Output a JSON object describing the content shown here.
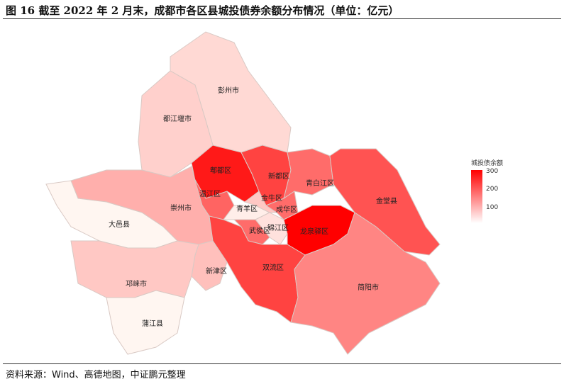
{
  "title": "图 16    截至 2022 年 2 月末，成都市各区县城投债券余额分布情况（单位：亿元）",
  "source": "资料来源：Wind、高德地图，中证鹏元整理",
  "legend": {
    "title": "城投债余额",
    "ticks": [
      "300",
      "200",
      "100"
    ],
    "range": [
      0,
      300
    ],
    "low_color": "#ffffff",
    "high_color": "#ff0000"
  },
  "regions": [
    {
      "name": "彭州市",
      "value": 40
    },
    {
      "name": "都江堰市",
      "value": 50
    },
    {
      "name": "郫都区",
      "value": 270
    },
    {
      "name": "新都区",
      "value": 220
    },
    {
      "name": "青白江区",
      "value": 170
    },
    {
      "name": "金堂县",
      "value": 200
    },
    {
      "name": "温江区",
      "value": 180
    },
    {
      "name": "崇州市",
      "value": 90
    },
    {
      "name": "大邑县",
      "value": 5
    },
    {
      "name": "青羊区",
      "value": 15
    },
    {
      "name": "金牛区",
      "value": 60
    },
    {
      "name": "成华区",
      "value": 170
    },
    {
      "name": "锦江区",
      "value": 30
    },
    {
      "name": "武侯区",
      "value": 170
    },
    {
      "name": "龙泉驿区",
      "value": 300
    },
    {
      "name": "双流区",
      "value": 220
    },
    {
      "name": "新津区",
      "value": 70
    },
    {
      "name": "邛崃市",
      "value": 60
    },
    {
      "name": "蒲江县",
      "value": 5
    },
    {
      "name": "简阳市",
      "value": 140
    }
  ]
}
